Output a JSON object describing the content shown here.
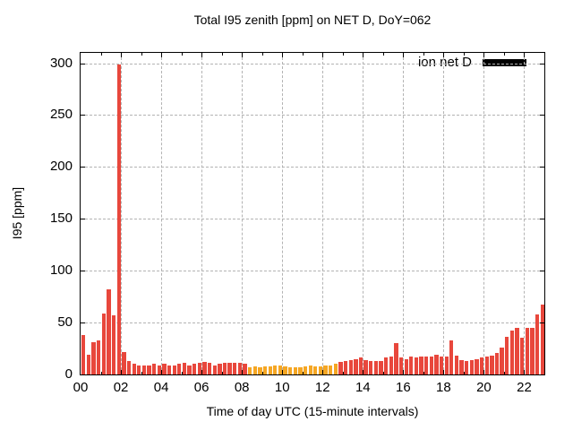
{
  "chart_data": {
    "type": "bar",
    "title": "Total I95 zenith [ppm] on NET D, DoY=062",
    "xlabel": "Time of day UTC (15-minute intervals)",
    "ylabel": "I95 [ppm]",
    "legend_label": "ion net D",
    "legend_position": "top-right-inside",
    "grid": "dashed-gray-on",
    "ylim": [
      0,
      310
    ],
    "yticks": [
      0,
      50,
      100,
      150,
      200,
      250,
      300
    ],
    "xlim_hours": [
      0,
      23
    ],
    "xtick_labels": [
      "00",
      "02",
      "04",
      "06",
      "08",
      "10",
      "12",
      "14",
      "16",
      "18",
      "20",
      "22"
    ],
    "interval_minutes": 15,
    "colors": {
      "bar_red": "#e8473c",
      "bar_orange": "#f5a623",
      "legend_swatch": "#000000",
      "grid_gray": "#b3b3b3"
    },
    "orange_start_index": 33,
    "orange_end_index": 50,
    "times": [
      "00:00",
      "00:15",
      "00:30",
      "00:45",
      "01:00",
      "01:15",
      "01:30",
      "01:45",
      "02:00",
      "02:15",
      "02:30",
      "02:45",
      "03:00",
      "03:15",
      "03:30",
      "03:45",
      "04:00",
      "04:15",
      "04:30",
      "04:45",
      "05:00",
      "05:15",
      "05:30",
      "05:45",
      "06:00",
      "06:15",
      "06:30",
      "06:45",
      "07:00",
      "07:15",
      "07:30",
      "07:45",
      "08:00",
      "08:15",
      "08:30",
      "08:45",
      "09:00",
      "09:15",
      "09:30",
      "09:45",
      "10:00",
      "10:15",
      "10:30",
      "10:45",
      "11:00",
      "11:15",
      "11:30",
      "11:45",
      "12:00",
      "12:15",
      "12:30",
      "12:45",
      "13:00",
      "13:15",
      "13:30",
      "13:45",
      "14:00",
      "14:15",
      "14:30",
      "14:45",
      "15:00",
      "15:15",
      "15:30",
      "15:45",
      "16:00",
      "16:15",
      "16:30",
      "16:45",
      "17:00",
      "17:15",
      "17:30",
      "17:45",
      "18:00",
      "18:15",
      "18:30",
      "18:45",
      "19:00",
      "19:15",
      "19:30",
      "19:45",
      "20:00",
      "20:15",
      "20:30",
      "20:45",
      "21:00",
      "21:15",
      "21:30",
      "21:45",
      "22:00",
      "22:15",
      "22:30",
      "22:45"
    ],
    "values": [
      38,
      19,
      31,
      33,
      59,
      82,
      57,
      299,
      22,
      13,
      10,
      9,
      9,
      9,
      10,
      9,
      10,
      9,
      9,
      10,
      11,
      9,
      10,
      11,
      12,
      11,
      9,
      10,
      11,
      11,
      11,
      11,
      10,
      7,
      8,
      7,
      8,
      8,
      9,
      9,
      8,
      7,
      7,
      7,
      8,
      9,
      8,
      8,
      9,
      9,
      10,
      12,
      13,
      14,
      15,
      16,
      14,
      13,
      13,
      13,
      16,
      17,
      30,
      16,
      15,
      17,
      16,
      17,
      17,
      17,
      19,
      17,
      17,
      33,
      18,
      14,
      13,
      14,
      15,
      16,
      17,
      18,
      21,
      26,
      36,
      42,
      45,
      35,
      45,
      45,
      58,
      67
    ]
  }
}
